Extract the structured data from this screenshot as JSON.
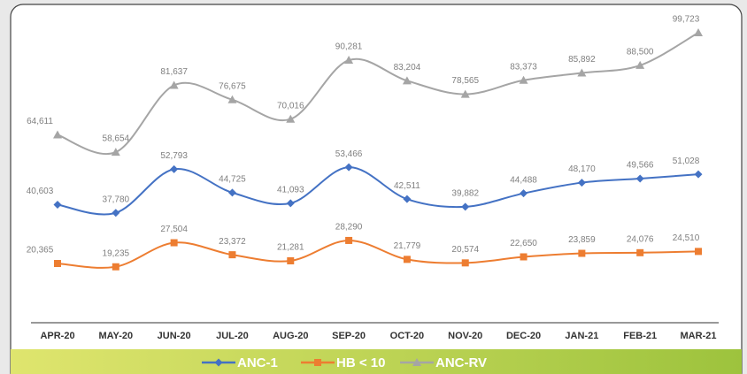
{
  "chart_data": {
    "type": "line",
    "categories": [
      "APR-20",
      "MAY-20",
      "JUN-20",
      "JUL-20",
      "AUG-20",
      "SEP-20",
      "OCT-20",
      "NOV-20",
      "DEC-20",
      "JAN-21",
      "FEB-21",
      "MAR-21"
    ],
    "series": [
      {
        "name": "ANC-1",
        "color": "#4472c4",
        "marker": "diamond",
        "values": [
          40603,
          37780,
          52793,
          44725,
          41093,
          53466,
          42511,
          39882,
          44488,
          48170,
          49566,
          51028
        ],
        "value_labels": [
          "40,603",
          "37,780",
          "52,793",
          "44,725",
          "41,093",
          "53,466",
          "42,511",
          "39,882",
          "44,488",
          "48,170",
          "49,566",
          "51,028"
        ]
      },
      {
        "name": "HB < 10",
        "color": "#ed7d31",
        "marker": "square",
        "values": [
          20365,
          19235,
          27504,
          23372,
          21281,
          28290,
          21779,
          20574,
          22650,
          23859,
          24076,
          24510
        ],
        "value_labels": [
          "20,365",
          "19,235",
          "27,504",
          "23,372",
          "21,281",
          "28,290",
          "21,779",
          "20,574",
          "22,650",
          "23,859",
          "24,076",
          "24,510"
        ]
      },
      {
        "name": "ANC-RV",
        "color": "#a5a5a5",
        "marker": "triangle",
        "values": [
          64611,
          58654,
          81637,
          76675,
          70016,
          90281,
          83204,
          78565,
          83373,
          85892,
          88500,
          99723
        ],
        "value_labels": [
          "64,611",
          "58,654",
          "81,637",
          "76,675",
          "70,016",
          "90,281",
          "83,204",
          "78,565",
          "83,373",
          "85,892",
          "88,500",
          "99,723"
        ]
      }
    ],
    "smooth": true,
    "legend": "bottom"
  }
}
